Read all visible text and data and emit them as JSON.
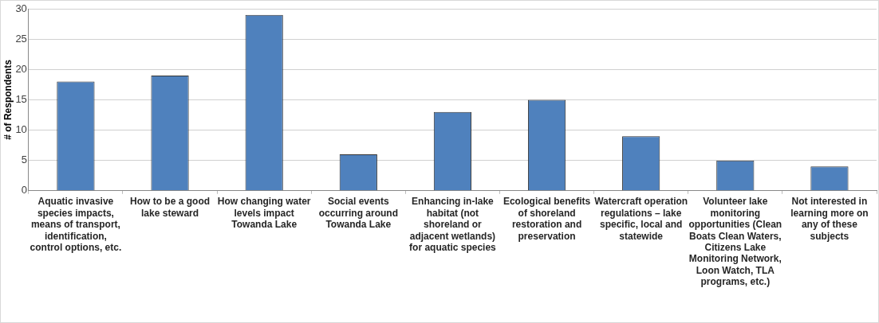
{
  "chart_data": {
    "type": "bar",
    "ylabel": "# of Respondents",
    "categories": [
      "Aquatic invasive species impacts, means of transport, identification, control options, etc.",
      "How to be a good lake steward",
      "How changing water levels impact Towanda Lake",
      "Social events occurring around Towanda Lake",
      "Enhancing in-lake habitat (not shoreland or adjacent wetlands) for aquatic species",
      "Ecological benefits of shoreland restoration and preservation",
      "Watercraft operation regulations – lake specific, local and statewide",
      "Volunteer lake monitoring opportunities (Clean Boats Clean Waters, Citizens Lake Monitoring Network, Loon Watch, TLA programs, etc.)",
      "Not interested in learning more on any of these subjects"
    ],
    "values": [
      18,
      19,
      29,
      6,
      13,
      15,
      9,
      5,
      4
    ],
    "color": "#4f81bd",
    "ylim": [
      0,
      30
    ],
    "yticks": [
      0,
      5,
      10,
      15,
      20,
      25,
      30
    ],
    "grid": "y",
    "legend": false
  }
}
